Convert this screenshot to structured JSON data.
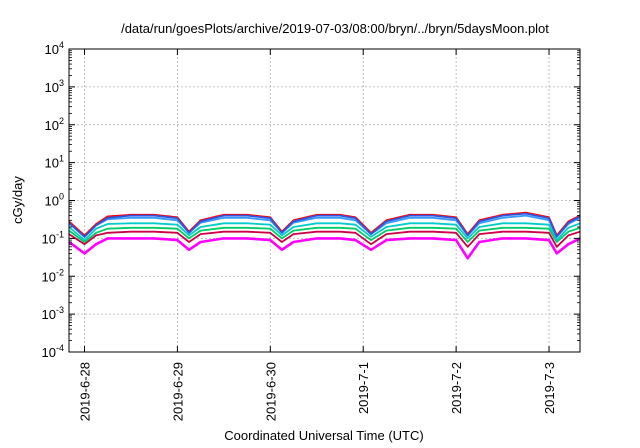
{
  "chart_data": {
    "type": "line",
    "title": "/data/run/goesPlots/archive/2019-07-03/08:00/bryn/../bryn/5daysMoon.plot",
    "xlabel": "Coordinated Universal Time (UTC)",
    "ylabel": "cGy/day",
    "y_scale": "log",
    "ylim": [
      0.0001,
      10000
    ],
    "y_ticks": [
      {
        "value": 0.0001,
        "base": "10",
        "exp": "-4"
      },
      {
        "value": 0.001,
        "base": "10",
        "exp": "-3"
      },
      {
        "value": 0.01,
        "base": "10",
        "exp": "-2"
      },
      {
        "value": 0.1,
        "base": "10",
        "exp": "-1"
      },
      {
        "value": 1,
        "base": "10",
        "exp": "0"
      },
      {
        "value": 10,
        "base": "10",
        "exp": "1"
      },
      {
        "value": 100,
        "base": "10",
        "exp": "2"
      },
      {
        "value": 1000,
        "base": "10",
        "exp": "3"
      },
      {
        "value": 10000,
        "base": "10",
        "exp": "4"
      }
    ],
    "x_ticks": [
      "2019-6-28",
      "2019-6-29",
      "2019-6-30",
      "2019-7-1",
      "2019-7-2",
      "2019-7-3"
    ],
    "xlim": [
      "2019-06-27 20:00",
      "2019-07-03 08:00"
    ],
    "grid": true,
    "legend": "none",
    "series": [
      {
        "color": "#ff00ff",
        "x": [
          "2019-06-27 20:00",
          "2019-06-28 00:00",
          "2019-06-28 03:00",
          "2019-06-28 06:00",
          "2019-06-28 12:00",
          "2019-06-28 18:00",
          "2019-06-29 00:00",
          "2019-06-29 03:00",
          "2019-06-29 06:00",
          "2019-06-29 12:00",
          "2019-06-29 18:00",
          "2019-06-30 00:00",
          "2019-06-30 03:00",
          "2019-06-30 06:00",
          "2019-06-30 12:00",
          "2019-06-30 18:00",
          "2019-06-30 22:00",
          "2019-07-01 02:00",
          "2019-07-01 06:00",
          "2019-07-01 12:00",
          "2019-07-01 18:00",
          "2019-07-02 00:00",
          "2019-07-02 03:00",
          "2019-07-02 06:00",
          "2019-07-02 12:00",
          "2019-07-02 18:00",
          "2019-07-03 00:00",
          "2019-07-03 02:00",
          "2019-07-03 05:00",
          "2019-07-03 08:00"
        ],
        "values": [
          0.08,
          0.04,
          0.07,
          0.1,
          0.1,
          0.1,
          0.09,
          0.05,
          0.08,
          0.1,
          0.1,
          0.09,
          0.05,
          0.08,
          0.1,
          0.1,
          0.09,
          0.05,
          0.09,
          0.1,
          0.1,
          0.09,
          0.03,
          0.08,
          0.1,
          0.1,
          0.09,
          0.04,
          0.07,
          0.1
        ]
      },
      {
        "color": "#cc0044",
        "x": [
          "2019-06-27 20:00",
          "2019-06-28 00:00",
          "2019-06-28 03:00",
          "2019-06-28 06:00",
          "2019-06-28 12:00",
          "2019-06-28 18:00",
          "2019-06-29 00:00",
          "2019-06-29 03:00",
          "2019-06-29 06:00",
          "2019-06-29 12:00",
          "2019-06-29 18:00",
          "2019-06-30 00:00",
          "2019-06-30 03:00",
          "2019-06-30 06:00",
          "2019-06-30 12:00",
          "2019-06-30 18:00",
          "2019-06-30 22:00",
          "2019-07-01 02:00",
          "2019-07-01 06:00",
          "2019-07-01 12:00",
          "2019-07-01 18:00",
          "2019-07-02 00:00",
          "2019-07-02 03:00",
          "2019-07-02 06:00",
          "2019-07-02 12:00",
          "2019-07-02 18:00",
          "2019-07-03 00:00",
          "2019-07-03 02:00",
          "2019-07-03 05:00",
          "2019-07-03 08:00"
        ],
        "values": [
          0.13,
          0.07,
          0.12,
          0.14,
          0.15,
          0.15,
          0.14,
          0.08,
          0.13,
          0.15,
          0.15,
          0.14,
          0.08,
          0.13,
          0.15,
          0.15,
          0.14,
          0.07,
          0.13,
          0.15,
          0.15,
          0.14,
          0.06,
          0.13,
          0.15,
          0.15,
          0.14,
          0.06,
          0.12,
          0.15
        ]
      },
      {
        "color": "#00cc66",
        "x": [
          "2019-06-27 20:00",
          "2019-06-28 00:00",
          "2019-06-28 03:00",
          "2019-06-28 06:00",
          "2019-06-28 12:00",
          "2019-06-28 18:00",
          "2019-06-29 00:00",
          "2019-06-29 03:00",
          "2019-06-29 06:00",
          "2019-06-29 12:00",
          "2019-06-29 18:00",
          "2019-06-30 00:00",
          "2019-06-30 03:00",
          "2019-06-30 06:00",
          "2019-06-30 12:00",
          "2019-06-30 18:00",
          "2019-06-30 22:00",
          "2019-07-01 02:00",
          "2019-07-01 06:00",
          "2019-07-01 12:00",
          "2019-07-01 18:00",
          "2019-07-02 00:00",
          "2019-07-02 03:00",
          "2019-07-02 06:00",
          "2019-07-02 12:00",
          "2019-07-02 18:00",
          "2019-07-03 00:00",
          "2019-07-03 02:00",
          "2019-07-03 05:00",
          "2019-07-03 08:00"
        ],
        "values": [
          0.16,
          0.08,
          0.14,
          0.18,
          0.19,
          0.19,
          0.18,
          0.1,
          0.16,
          0.19,
          0.19,
          0.18,
          0.1,
          0.16,
          0.19,
          0.19,
          0.18,
          0.09,
          0.16,
          0.19,
          0.19,
          0.18,
          0.08,
          0.16,
          0.19,
          0.19,
          0.18,
          0.08,
          0.15,
          0.19
        ]
      },
      {
        "color": "#00cccc",
        "x": [
          "2019-06-27 20:00",
          "2019-06-28 00:00",
          "2019-06-28 03:00",
          "2019-06-28 06:00",
          "2019-06-28 12:00",
          "2019-06-28 18:00",
          "2019-06-29 00:00",
          "2019-06-29 03:00",
          "2019-06-29 06:00",
          "2019-06-29 12:00",
          "2019-06-29 18:00",
          "2019-06-30 00:00",
          "2019-06-30 03:00",
          "2019-06-30 06:00",
          "2019-06-30 12:00",
          "2019-06-30 18:00",
          "2019-06-30 22:00",
          "2019-07-01 02:00",
          "2019-07-01 06:00",
          "2019-07-01 12:00",
          "2019-07-01 18:00",
          "2019-07-02 00:00",
          "2019-07-02 03:00",
          "2019-07-02 06:00",
          "2019-07-02 12:00",
          "2019-07-02 18:00",
          "2019-07-03 00:00",
          "2019-07-03 02:00",
          "2019-07-03 05:00",
          "2019-07-03 08:00"
        ],
        "values": [
          0.2,
          0.09,
          0.18,
          0.24,
          0.25,
          0.25,
          0.23,
          0.12,
          0.2,
          0.25,
          0.25,
          0.23,
          0.12,
          0.2,
          0.25,
          0.25,
          0.23,
          0.11,
          0.2,
          0.25,
          0.25,
          0.23,
          0.1,
          0.2,
          0.25,
          0.25,
          0.23,
          0.09,
          0.19,
          0.25
        ]
      },
      {
        "color": "#3399ff",
        "x": [
          "2019-06-27 20:00",
          "2019-06-28 00:00",
          "2019-06-28 03:00",
          "2019-06-28 06:00",
          "2019-06-28 12:00",
          "2019-06-28 18:00",
          "2019-06-29 00:00",
          "2019-06-29 03:00",
          "2019-06-29 06:00",
          "2019-06-29 12:00",
          "2019-06-29 18:00",
          "2019-06-30 00:00",
          "2019-06-30 03:00",
          "2019-06-30 06:00",
          "2019-06-30 12:00",
          "2019-06-30 18:00",
          "2019-06-30 22:00",
          "2019-07-01 02:00",
          "2019-07-01 06:00",
          "2019-07-01 12:00",
          "2019-07-01 18:00",
          "2019-07-02 00:00",
          "2019-07-02 03:00",
          "2019-07-02 06:00",
          "2019-07-02 12:00",
          "2019-07-02 18:00",
          "2019-07-03 00:00",
          "2019-07-03 02:00",
          "2019-07-03 05:00",
          "2019-07-03 08:00"
        ],
        "values": [
          0.25,
          0.11,
          0.22,
          0.32,
          0.35,
          0.35,
          0.3,
          0.14,
          0.26,
          0.35,
          0.35,
          0.3,
          0.14,
          0.26,
          0.35,
          0.35,
          0.3,
          0.13,
          0.25,
          0.35,
          0.35,
          0.3,
          0.12,
          0.25,
          0.35,
          0.4,
          0.3,
          0.11,
          0.24,
          0.35
        ]
      },
      {
        "color": "#ff0000",
        "x": [
          "2019-06-27 20:00",
          "2019-06-28 00:00",
          "2019-06-28 03:00",
          "2019-06-28 06:00",
          "2019-06-28 12:00",
          "2019-06-28 18:00",
          "2019-06-29 00:00",
          "2019-06-29 03:00",
          "2019-06-29 06:00",
          "2019-06-29 12:00",
          "2019-06-29 18:00",
          "2019-06-30 00:00",
          "2019-06-30 03:00",
          "2019-06-30 06:00",
          "2019-06-30 12:00",
          "2019-06-30 18:00",
          "2019-06-30 22:00",
          "2019-07-01 02:00",
          "2019-07-01 06:00",
          "2019-07-01 12:00",
          "2019-07-01 18:00",
          "2019-07-02 00:00",
          "2019-07-02 03:00",
          "2019-07-02 06:00",
          "2019-07-02 12:00",
          "2019-07-02 18:00",
          "2019-07-03 00:00",
          "2019-07-03 02:00",
          "2019-07-03 05:00",
          "2019-07-03 08:00"
        ],
        "values": [
          0.28,
          0.12,
          0.24,
          0.38,
          0.42,
          0.42,
          0.36,
          0.15,
          0.3,
          0.42,
          0.42,
          0.36,
          0.15,
          0.3,
          0.42,
          0.42,
          0.36,
          0.14,
          0.3,
          0.42,
          0.42,
          0.36,
          0.13,
          0.3,
          0.42,
          0.48,
          0.36,
          0.12,
          0.28,
          0.4
        ]
      },
      {
        "color": "#3355dd",
        "x": [
          "2019-06-27 20:00",
          "2019-06-28 00:00",
          "2019-06-28 03:00",
          "2019-06-28 06:00",
          "2019-06-28 12:00",
          "2019-06-28 18:00",
          "2019-06-29 00:00",
          "2019-06-29 03:00",
          "2019-06-29 06:00",
          "2019-06-29 12:00",
          "2019-06-29 18:00",
          "2019-06-30 00:00",
          "2019-06-30 03:00",
          "2019-06-30 06:00",
          "2019-06-30 12:00",
          "2019-06-30 18:00",
          "2019-06-30 22:00",
          "2019-07-01 02:00",
          "2019-07-01 06:00",
          "2019-07-01 12:00",
          "2019-07-01 18:00",
          "2019-07-02 00:00",
          "2019-07-02 03:00",
          "2019-07-02 06:00",
          "2019-07-02 12:00",
          "2019-07-02 18:00",
          "2019-07-03 00:00",
          "2019-07-03 02:00",
          "2019-07-03 05:00",
          "2019-07-03 08:00"
        ],
        "values": [
          0.26,
          0.11,
          0.22,
          0.35,
          0.4,
          0.4,
          0.34,
          0.14,
          0.28,
          0.4,
          0.4,
          0.34,
          0.14,
          0.28,
          0.4,
          0.4,
          0.34,
          0.13,
          0.28,
          0.4,
          0.4,
          0.34,
          0.12,
          0.28,
          0.4,
          0.45,
          0.34,
          0.11,
          0.26,
          0.38
        ]
      }
    ]
  }
}
